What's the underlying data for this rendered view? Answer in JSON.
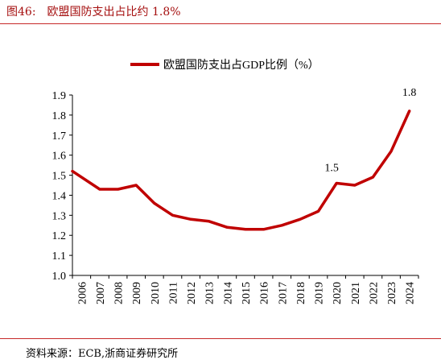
{
  "figure": {
    "number": "图46:",
    "title": "欧盟国防支出占比约 1.8%"
  },
  "source": "资料来源：ECB,浙商证券研究所",
  "colors": {
    "accent": "#a50f0f",
    "line": "#c00000",
    "rule": "#c62828"
  },
  "chart_data": {
    "type": "line",
    "title": "",
    "xlabel": "",
    "ylabel": "",
    "legend_position": "top-center",
    "grid": false,
    "x": [
      "2006",
      "2007",
      "2008",
      "2009",
      "2010",
      "2011",
      "2012",
      "2013",
      "2014",
      "2015",
      "2016",
      "2017",
      "2018",
      "2019",
      "2020",
      "2021",
      "2022",
      "2023",
      "2024"
    ],
    "ylim": [
      1.0,
      1.9
    ],
    "yticks": [
      1.0,
      1.1,
      1.2,
      1.3,
      1.4,
      1.5,
      1.6,
      1.7,
      1.8,
      1.9
    ],
    "series": [
      {
        "name": "欧盟国防支出占GDP比例（%）",
        "values": [
          1.52,
          1.43,
          1.43,
          1.45,
          1.36,
          1.3,
          1.28,
          1.27,
          1.24,
          1.23,
          1.23,
          1.25,
          1.28,
          1.32,
          1.46,
          1.45,
          1.49,
          1.62,
          1.82
        ]
      }
    ],
    "annotations": [
      {
        "x": "2020",
        "text": "1.5"
      },
      {
        "x": "2024",
        "text": "1.8"
      }
    ]
  }
}
